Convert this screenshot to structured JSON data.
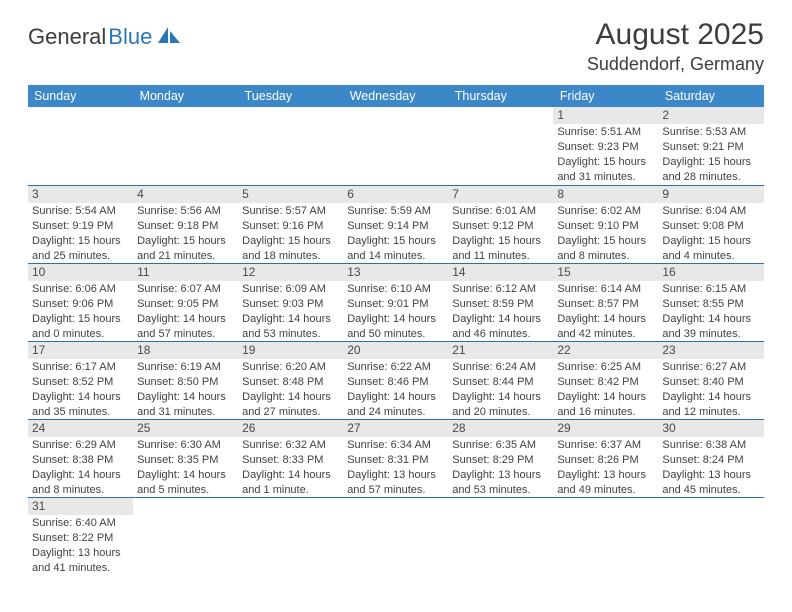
{
  "brand": {
    "part1": "General",
    "part2": "Blue"
  },
  "title": "August 2025",
  "location": "Suddendorf, Germany",
  "colors": {
    "header_bg": "#3b87c8",
    "header_text": "#ffffff",
    "daynum_bg": "#e8e8e8",
    "row_divider": "#2f6fa8",
    "brand_blue": "#2976b8"
  },
  "day_headers": [
    "Sunday",
    "Monday",
    "Tuesday",
    "Wednesday",
    "Thursday",
    "Friday",
    "Saturday"
  ],
  "weeks": [
    [
      {
        "n": "",
        "sr": "",
        "ss": "",
        "dl1": "",
        "dl2": ""
      },
      {
        "n": "",
        "sr": "",
        "ss": "",
        "dl1": "",
        "dl2": ""
      },
      {
        "n": "",
        "sr": "",
        "ss": "",
        "dl1": "",
        "dl2": ""
      },
      {
        "n": "",
        "sr": "",
        "ss": "",
        "dl1": "",
        "dl2": ""
      },
      {
        "n": "",
        "sr": "",
        "ss": "",
        "dl1": "",
        "dl2": ""
      },
      {
        "n": "1",
        "sr": "Sunrise: 5:51 AM",
        "ss": "Sunset: 9:23 PM",
        "dl1": "Daylight: 15 hours",
        "dl2": "and 31 minutes."
      },
      {
        "n": "2",
        "sr": "Sunrise: 5:53 AM",
        "ss": "Sunset: 9:21 PM",
        "dl1": "Daylight: 15 hours",
        "dl2": "and 28 minutes."
      }
    ],
    [
      {
        "n": "3",
        "sr": "Sunrise: 5:54 AM",
        "ss": "Sunset: 9:19 PM",
        "dl1": "Daylight: 15 hours",
        "dl2": "and 25 minutes."
      },
      {
        "n": "4",
        "sr": "Sunrise: 5:56 AM",
        "ss": "Sunset: 9:18 PM",
        "dl1": "Daylight: 15 hours",
        "dl2": "and 21 minutes."
      },
      {
        "n": "5",
        "sr": "Sunrise: 5:57 AM",
        "ss": "Sunset: 9:16 PM",
        "dl1": "Daylight: 15 hours",
        "dl2": "and 18 minutes."
      },
      {
        "n": "6",
        "sr": "Sunrise: 5:59 AM",
        "ss": "Sunset: 9:14 PM",
        "dl1": "Daylight: 15 hours",
        "dl2": "and 14 minutes."
      },
      {
        "n": "7",
        "sr": "Sunrise: 6:01 AM",
        "ss": "Sunset: 9:12 PM",
        "dl1": "Daylight: 15 hours",
        "dl2": "and 11 minutes."
      },
      {
        "n": "8",
        "sr": "Sunrise: 6:02 AM",
        "ss": "Sunset: 9:10 PM",
        "dl1": "Daylight: 15 hours",
        "dl2": "and 8 minutes."
      },
      {
        "n": "9",
        "sr": "Sunrise: 6:04 AM",
        "ss": "Sunset: 9:08 PM",
        "dl1": "Daylight: 15 hours",
        "dl2": "and 4 minutes."
      }
    ],
    [
      {
        "n": "10",
        "sr": "Sunrise: 6:06 AM",
        "ss": "Sunset: 9:06 PM",
        "dl1": "Daylight: 15 hours",
        "dl2": "and 0 minutes."
      },
      {
        "n": "11",
        "sr": "Sunrise: 6:07 AM",
        "ss": "Sunset: 9:05 PM",
        "dl1": "Daylight: 14 hours",
        "dl2": "and 57 minutes."
      },
      {
        "n": "12",
        "sr": "Sunrise: 6:09 AM",
        "ss": "Sunset: 9:03 PM",
        "dl1": "Daylight: 14 hours",
        "dl2": "and 53 minutes."
      },
      {
        "n": "13",
        "sr": "Sunrise: 6:10 AM",
        "ss": "Sunset: 9:01 PM",
        "dl1": "Daylight: 14 hours",
        "dl2": "and 50 minutes."
      },
      {
        "n": "14",
        "sr": "Sunrise: 6:12 AM",
        "ss": "Sunset: 8:59 PM",
        "dl1": "Daylight: 14 hours",
        "dl2": "and 46 minutes."
      },
      {
        "n": "15",
        "sr": "Sunrise: 6:14 AM",
        "ss": "Sunset: 8:57 PM",
        "dl1": "Daylight: 14 hours",
        "dl2": "and 42 minutes."
      },
      {
        "n": "16",
        "sr": "Sunrise: 6:15 AM",
        "ss": "Sunset: 8:55 PM",
        "dl1": "Daylight: 14 hours",
        "dl2": "and 39 minutes."
      }
    ],
    [
      {
        "n": "17",
        "sr": "Sunrise: 6:17 AM",
        "ss": "Sunset: 8:52 PM",
        "dl1": "Daylight: 14 hours",
        "dl2": "and 35 minutes."
      },
      {
        "n": "18",
        "sr": "Sunrise: 6:19 AM",
        "ss": "Sunset: 8:50 PM",
        "dl1": "Daylight: 14 hours",
        "dl2": "and 31 minutes."
      },
      {
        "n": "19",
        "sr": "Sunrise: 6:20 AM",
        "ss": "Sunset: 8:48 PM",
        "dl1": "Daylight: 14 hours",
        "dl2": "and 27 minutes."
      },
      {
        "n": "20",
        "sr": "Sunrise: 6:22 AM",
        "ss": "Sunset: 8:46 PM",
        "dl1": "Daylight: 14 hours",
        "dl2": "and 24 minutes."
      },
      {
        "n": "21",
        "sr": "Sunrise: 6:24 AM",
        "ss": "Sunset: 8:44 PM",
        "dl1": "Daylight: 14 hours",
        "dl2": "and 20 minutes."
      },
      {
        "n": "22",
        "sr": "Sunrise: 6:25 AM",
        "ss": "Sunset: 8:42 PM",
        "dl1": "Daylight: 14 hours",
        "dl2": "and 16 minutes."
      },
      {
        "n": "23",
        "sr": "Sunrise: 6:27 AM",
        "ss": "Sunset: 8:40 PM",
        "dl1": "Daylight: 14 hours",
        "dl2": "and 12 minutes."
      }
    ],
    [
      {
        "n": "24",
        "sr": "Sunrise: 6:29 AM",
        "ss": "Sunset: 8:38 PM",
        "dl1": "Daylight: 14 hours",
        "dl2": "and 8 minutes."
      },
      {
        "n": "25",
        "sr": "Sunrise: 6:30 AM",
        "ss": "Sunset: 8:35 PM",
        "dl1": "Daylight: 14 hours",
        "dl2": "and 5 minutes."
      },
      {
        "n": "26",
        "sr": "Sunrise: 6:32 AM",
        "ss": "Sunset: 8:33 PM",
        "dl1": "Daylight: 14 hours",
        "dl2": "and 1 minute."
      },
      {
        "n": "27",
        "sr": "Sunrise: 6:34 AM",
        "ss": "Sunset: 8:31 PM",
        "dl1": "Daylight: 13 hours",
        "dl2": "and 57 minutes."
      },
      {
        "n": "28",
        "sr": "Sunrise: 6:35 AM",
        "ss": "Sunset: 8:29 PM",
        "dl1": "Daylight: 13 hours",
        "dl2": "and 53 minutes."
      },
      {
        "n": "29",
        "sr": "Sunrise: 6:37 AM",
        "ss": "Sunset: 8:26 PM",
        "dl1": "Daylight: 13 hours",
        "dl2": "and 49 minutes."
      },
      {
        "n": "30",
        "sr": "Sunrise: 6:38 AM",
        "ss": "Sunset: 8:24 PM",
        "dl1": "Daylight: 13 hours",
        "dl2": "and 45 minutes."
      }
    ],
    [
      {
        "n": "31",
        "sr": "Sunrise: 6:40 AM",
        "ss": "Sunset: 8:22 PM",
        "dl1": "Daylight: 13 hours",
        "dl2": "and 41 minutes."
      },
      {
        "n": "",
        "sr": "",
        "ss": "",
        "dl1": "",
        "dl2": ""
      },
      {
        "n": "",
        "sr": "",
        "ss": "",
        "dl1": "",
        "dl2": ""
      },
      {
        "n": "",
        "sr": "",
        "ss": "",
        "dl1": "",
        "dl2": ""
      },
      {
        "n": "",
        "sr": "",
        "ss": "",
        "dl1": "",
        "dl2": ""
      },
      {
        "n": "",
        "sr": "",
        "ss": "",
        "dl1": "",
        "dl2": ""
      },
      {
        "n": "",
        "sr": "",
        "ss": "",
        "dl1": "",
        "dl2": ""
      }
    ]
  ]
}
